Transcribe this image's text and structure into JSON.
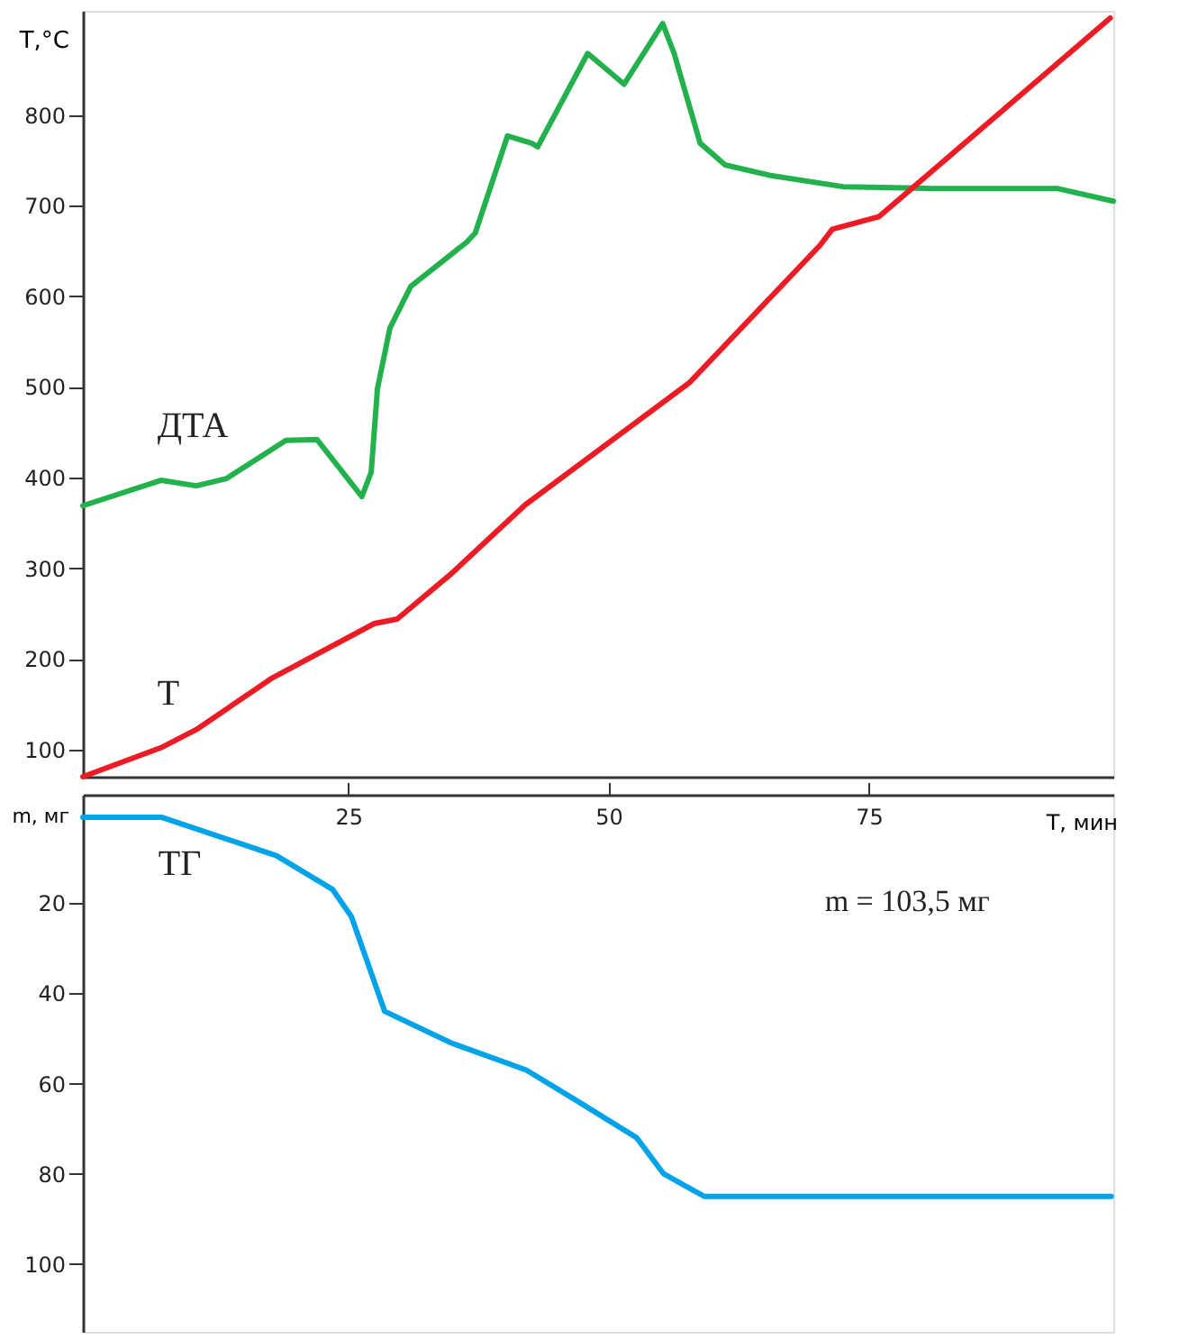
{
  "chart_data": [
    {
      "type": "line",
      "ylabel": "T,°C",
      "xlim": [
        -0.5,
        98.5
      ],
      "ylim": [
        70,
        915
      ],
      "yticks": [
        100,
        200,
        300,
        400,
        500,
        600,
        700,
        800
      ],
      "tick_labels": "y",
      "series": [
        {
          "name": "ДТА",
          "color": "#22b14c",
          "x": [
            -0.5,
            7,
            10.4,
            13.3,
            19,
            22,
            26.3,
            27.2,
            27.8,
            29,
            31,
            36.4,
            37.2,
            40.3,
            42.6,
            43.2,
            48,
            51.5,
            55.2,
            56.3,
            58.8,
            61.2,
            65.7,
            72.5,
            81.1,
            93.1,
            98.5
          ],
          "values": [
            369,
            397,
            391,
            399,
            441,
            442,
            379,
            406,
            498,
            565,
            611,
            660,
            670,
            777,
            769,
            765,
            868,
            834,
            901,
            868,
            769,
            745,
            733,
            721,
            719,
            719,
            705
          ]
        },
        {
          "name": "Т",
          "color": "#ed1c24",
          "x": [
            -0.5,
            7,
            10.4,
            17.7,
            27.5,
            29.7,
            34.9,
            42,
            57.8,
            70.3,
            71.5,
            76,
            98.2
          ],
          "values": [
            70,
            102,
            122,
            179,
            239,
            244,
            294,
            370,
            505,
            656,
            674,
            688,
            907
          ]
        }
      ]
    },
    {
      "type": "line",
      "ylabel": "m, мг",
      "xlabel": "Т, мин",
      "xlim": [
        -0.5,
        98.5
      ],
      "xticks": [
        25,
        50,
        75
      ],
      "ylim": [
        115,
        -4
      ],
      "yticks": [
        20,
        40,
        60,
        80,
        100
      ],
      "annotations": [
        "m = 103,5 мг"
      ],
      "series": [
        {
          "name": "ТГ",
          "color": "#00a2e8",
          "x": [
            -0.5,
            7.1,
            18.1,
            23.5,
            25.3,
            28.5,
            34.9,
            42.1,
            47.1,
            52.7,
            55.3,
            59.2,
            98.3
          ],
          "values": [
            1,
            1,
            9.5,
            17,
            23,
            44,
            51,
            57,
            64,
            72,
            80,
            85,
            85
          ]
        }
      ]
    }
  ]
}
